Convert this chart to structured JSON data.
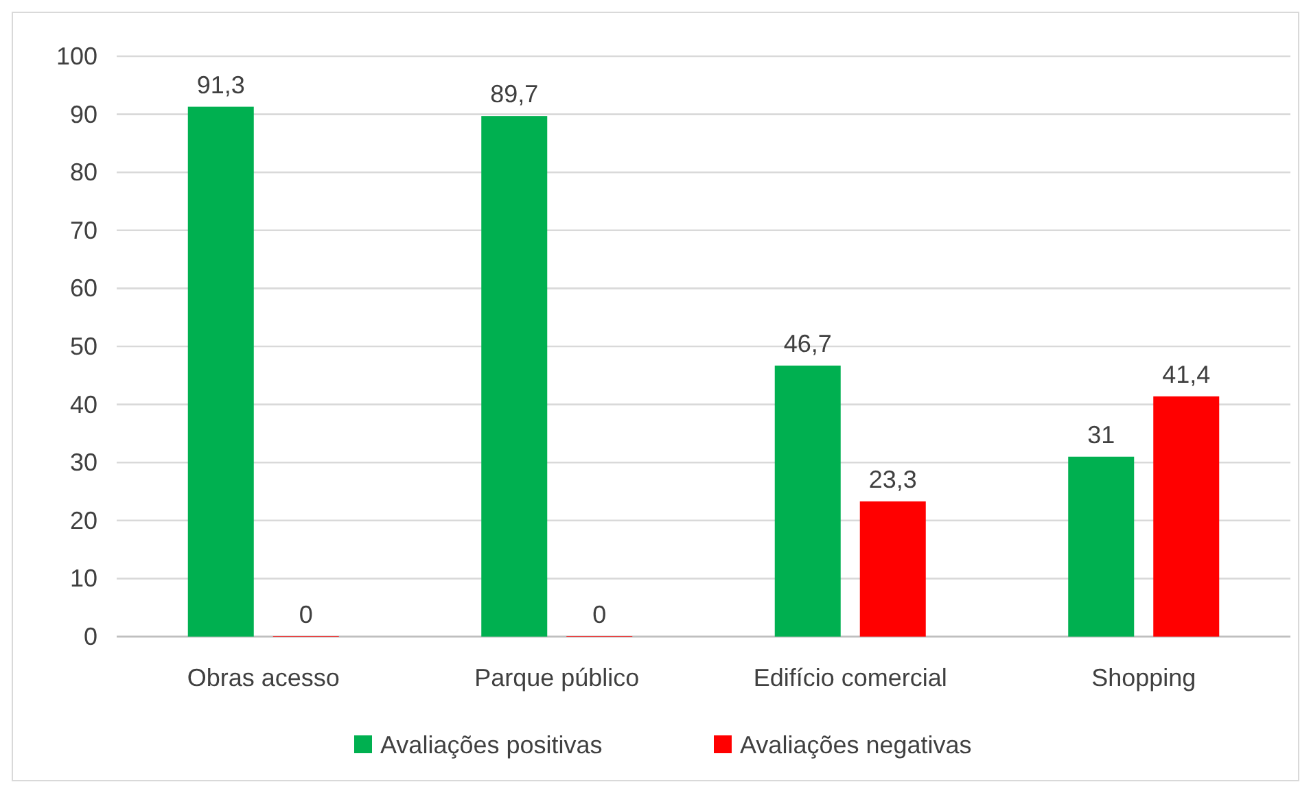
{
  "chart_data": {
    "type": "bar",
    "categories": [
      "Obras acesso",
      "Parque público",
      "Edifício comercial",
      "Shopping"
    ],
    "series": [
      {
        "name": "Avaliações positivas",
        "color": "#00b050",
        "values": [
          91.3,
          89.7,
          46.7,
          31
        ],
        "value_labels": [
          "91,3",
          "89,7",
          "46,7",
          "31"
        ]
      },
      {
        "name": "Avaliações negativas",
        "color": "#ff0000",
        "values": [
          0,
          0,
          23.3,
          41.4
        ],
        "value_labels": [
          "0",
          "0",
          "23,3",
          "41,4"
        ]
      }
    ],
    "ylim": [
      0,
      100
    ],
    "yticks": [
      0,
      10,
      20,
      30,
      40,
      50,
      60,
      70,
      80,
      90,
      100
    ],
    "grid": "y",
    "legend": "bottom"
  }
}
